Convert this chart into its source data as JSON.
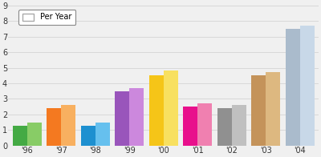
{
  "years": [
    "'96",
    "'97",
    "'98",
    "'99",
    "'00",
    "'01",
    "'02",
    "'03",
    "'04"
  ],
  "bar1_values": [
    1.3,
    2.4,
    1.3,
    3.5,
    4.5,
    2.5,
    2.4,
    4.5,
    7.5
  ],
  "bar2_values": [
    1.5,
    2.6,
    1.5,
    3.7,
    4.8,
    2.7,
    2.6,
    4.7,
    7.7
  ],
  "bar1_colors": [
    "#44aa44",
    "#f47920",
    "#1e90d0",
    "#9955bb",
    "#f5c518",
    "#e8108c",
    "#909090",
    "#c4935a",
    "#aabbcc"
  ],
  "bar2_colors": [
    "#88cc66",
    "#f8b060",
    "#66c0ee",
    "#cc88dd",
    "#f8e060",
    "#f080b0",
    "#c0c0c0",
    "#ddb880",
    "#c8d8e8"
  ],
  "ylim": [
    0,
    9
  ],
  "yticks": [
    0,
    1,
    2,
    3,
    4,
    5,
    6,
    7,
    8,
    9
  ],
  "legend_label": "Per Year",
  "bg_color": "#f0f0f0",
  "grid_color": "#d8d8d8",
  "bar_width": 0.42,
  "tick_fontsize": 7,
  "legend_fontsize": 7
}
